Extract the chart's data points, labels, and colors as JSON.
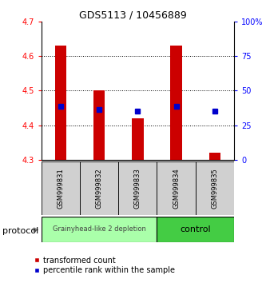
{
  "title": "GDS5113 / 10456889",
  "samples": [
    "GSM999831",
    "GSM999832",
    "GSM999833",
    "GSM999834",
    "GSM999835"
  ],
  "bar_bottom": 4.3,
  "bar_tops": [
    4.63,
    4.5,
    4.42,
    4.63,
    4.32
  ],
  "percentile_values": [
    4.455,
    4.445,
    4.44,
    4.455,
    4.44
  ],
  "ylim": [
    4.3,
    4.7
  ],
  "yticks_left": [
    4.3,
    4.4,
    4.5,
    4.6,
    4.7
  ],
  "yticks_right": [
    0,
    25,
    50,
    75,
    100
  ],
  "bar_color": "#CC0000",
  "percentile_color": "#0000CC",
  "group1_label": "Grainyhead-like 2 depletion",
  "group2_label": "control",
  "group1_color": "#aaffaa",
  "group2_color": "#44cc44",
  "legend_red": "transformed count",
  "legend_blue": "percentile rank within the sample",
  "protocol_label": "protocol",
  "bg_color": "#ffffff",
  "bar_width": 0.3,
  "title_fontsize": 9,
  "tick_fontsize": 7,
  "sample_fontsize": 6,
  "group_label_fontsize1": 6,
  "group_label_fontsize2": 8,
  "legend_fontsize": 7
}
